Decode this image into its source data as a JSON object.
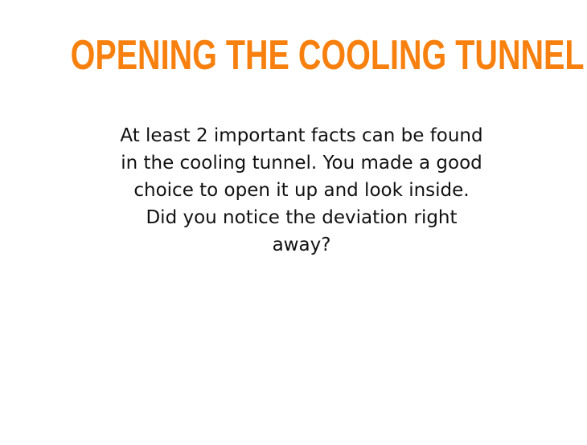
{
  "slide": {
    "title": "OPENING THE COOLING TUNNEL",
    "body": "At least 2 important facts can be found in the cooling tunnel. You made a good choice to open it up and look inside. Did you notice the deviation right away?"
  },
  "colors": {
    "title": "#F7800F",
    "text": "#111111",
    "background": "#FFFFFF"
  }
}
